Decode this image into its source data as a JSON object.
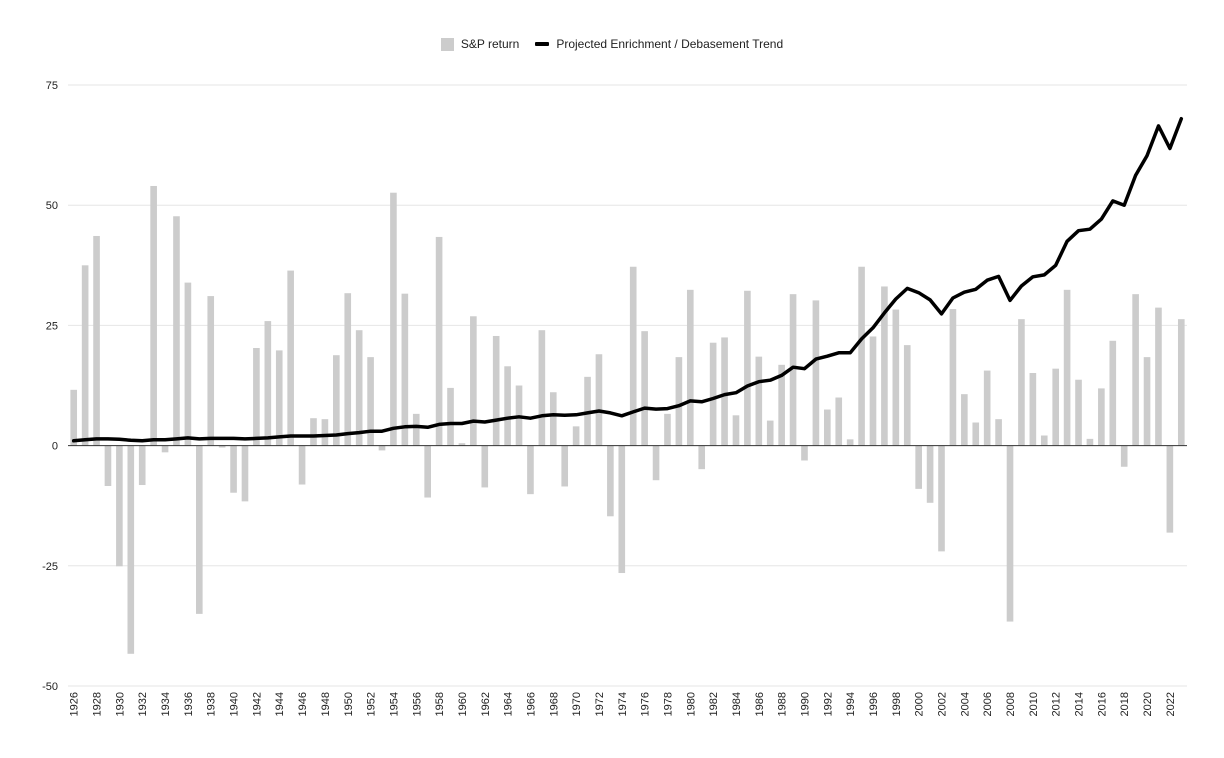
{
  "chart_data": {
    "type": "bar",
    "title": "",
    "xlabel": "",
    "ylabel": "",
    "ylim": [
      -50,
      75
    ],
    "yticks": [
      -50,
      -25,
      0,
      25,
      50,
      75
    ],
    "grid": true,
    "legend_position": "top-center",
    "colors": {
      "bars": "#cccccc",
      "line": "#000000",
      "grid": "#e6e6e6",
      "zero_line": "#333333"
    },
    "categories": [
      1926,
      1927,
      1928,
      1929,
      1930,
      1931,
      1932,
      1933,
      1934,
      1935,
      1936,
      1937,
      1938,
      1939,
      1940,
      1941,
      1942,
      1943,
      1944,
      1945,
      1946,
      1947,
      1948,
      1949,
      1950,
      1951,
      1952,
      1953,
      1954,
      1955,
      1956,
      1957,
      1958,
      1959,
      1960,
      1961,
      1962,
      1963,
      1964,
      1965,
      1966,
      1967,
      1968,
      1969,
      1970,
      1971,
      1972,
      1973,
      1974,
      1975,
      1976,
      1977,
      1978,
      1979,
      1980,
      1981,
      1982,
      1983,
      1984,
      1985,
      1986,
      1987,
      1988,
      1989,
      1990,
      1991,
      1992,
      1993,
      1994,
      1995,
      1996,
      1997,
      1998,
      1999,
      2000,
      2001,
      2002,
      2003,
      2004,
      2005,
      2006,
      2007,
      2008,
      2009,
      2010,
      2011,
      2012,
      2013,
      2014,
      2015,
      2016,
      2017,
      2018,
      2019,
      2020,
      2021,
      2022,
      2023
    ],
    "series": [
      {
        "name": "S&P return",
        "type": "bar",
        "values": [
          11.6,
          37.5,
          43.6,
          -8.4,
          -25.1,
          -43.3,
          -8.2,
          54.0,
          -1.4,
          47.7,
          33.9,
          -35.0,
          31.1,
          -0.4,
          -9.8,
          -11.6,
          20.3,
          25.9,
          19.8,
          36.4,
          -8.1,
          5.7,
          5.5,
          18.8,
          31.7,
          24.0,
          18.4,
          -1.0,
          52.6,
          31.6,
          6.6,
          -10.8,
          43.4,
          12.0,
          0.5,
          26.9,
          -8.7,
          22.8,
          16.5,
          12.5,
          -10.1,
          24.0,
          11.1,
          -8.5,
          4.0,
          14.3,
          19.0,
          -14.7,
          -26.5,
          37.2,
          23.8,
          -7.2,
          6.6,
          18.4,
          32.4,
          -4.9,
          21.4,
          22.5,
          6.3,
          32.2,
          18.5,
          5.2,
          16.8,
          31.5,
          -3.1,
          30.2,
          7.5,
          10.0,
          1.3,
          37.2,
          22.7,
          33.1,
          28.3,
          20.9,
          -9.0,
          -11.9,
          -22.0,
          28.4,
          10.7,
          4.8,
          15.6,
          5.5,
          -36.6,
          26.3,
          15.1,
          2.1,
          16.0,
          32.4,
          13.7,
          1.4,
          11.9,
          21.8,
          -4.4,
          31.5,
          18.4,
          28.7,
          -18.1,
          26.3
        ]
      },
      {
        "name": "Projected Enrichment / Debasement Trend",
        "type": "line",
        "values": [
          1.0,
          1.2,
          1.4,
          1.4,
          1.3,
          1.1,
          1.0,
          1.2,
          1.2,
          1.4,
          1.6,
          1.4,
          1.5,
          1.5,
          1.5,
          1.4,
          1.5,
          1.6,
          1.8,
          2.0,
          2.0,
          2.0,
          2.1,
          2.2,
          2.5,
          2.7,
          3.0,
          3.0,
          3.6,
          3.9,
          4.0,
          3.8,
          4.4,
          4.6,
          4.6,
          5.1,
          4.9,
          5.3,
          5.7,
          6.0,
          5.7,
          6.2,
          6.4,
          6.3,
          6.4,
          6.8,
          7.2,
          6.8,
          6.2,
          7.0,
          7.8,
          7.6,
          7.7,
          8.3,
          9.3,
          9.1,
          9.8,
          10.6,
          11.0,
          12.4,
          13.3,
          13.6,
          14.6,
          16.3,
          16.0,
          18.0,
          18.6,
          19.3,
          19.3,
          22.2,
          24.5,
          27.6,
          30.5,
          32.7,
          31.8,
          30.3,
          27.4,
          30.7,
          31.9,
          32.5,
          34.4,
          35.2,
          30.2,
          33.2,
          35.1,
          35.5,
          37.5,
          42.5,
          44.7,
          45.0,
          47.1,
          50.9,
          50.0,
          56.2,
          60.3,
          66.5,
          61.8,
          68.0
        ]
      }
    ]
  }
}
